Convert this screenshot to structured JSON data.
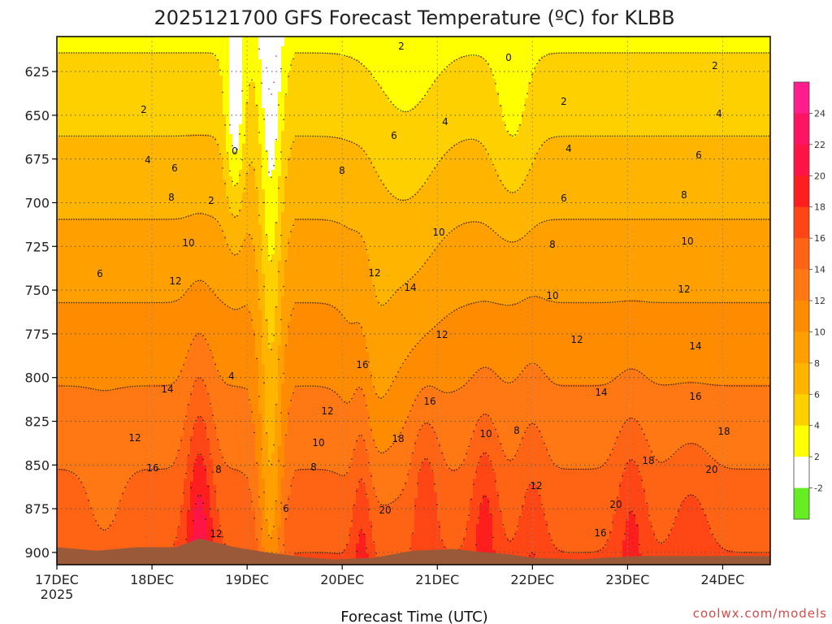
{
  "chart_data": {
    "type": "heatmap",
    "title": "2025121700 GFS Forecast Temperature (ºC) for KLBB",
    "xlabel": "Forecast Time (UTC)",
    "ylabel": "",
    "x_ticks": [
      "17DEC\n2025",
      "18DEC",
      "19DEC",
      "20DEC",
      "21DEC",
      "22DEC",
      "23DEC",
      "24DEC"
    ],
    "y_ticks": [
      625,
      650,
      675,
      700,
      725,
      750,
      775,
      800,
      825,
      850,
      875,
      900
    ],
    "ylim_hpa": [
      605,
      907
    ],
    "xlim_hours": [
      0,
      180
    ],
    "colorbar": {
      "labels": [
        24,
        22,
        20,
        18,
        16,
        14,
        12,
        10,
        8,
        6,
        4,
        2,
        -2
      ],
      "bands": [
        {
          "min": 24,
          "max": 26,
          "color": "#ff1e8c"
        },
        {
          "min": 22,
          "max": 24,
          "color": "#ff1464"
        },
        {
          "min": 20,
          "max": 22,
          "color": "#ff1446"
        },
        {
          "min": 18,
          "max": 20,
          "color": "#ff1e1e"
        },
        {
          "min": 16,
          "max": 18,
          "color": "#ff4614"
        },
        {
          "min": 14,
          "max": 16,
          "color": "#ff6414"
        },
        {
          "min": 12,
          "max": 14,
          "color": "#ff7814"
        },
        {
          "min": 10,
          "max": 12,
          "color": "#ff8c00"
        },
        {
          "min": 8,
          "max": 10,
          "color": "#ffa000"
        },
        {
          "min": 6,
          "max": 8,
          "color": "#ffb400"
        },
        {
          "min": 4,
          "max": 6,
          "color": "#ffd000"
        },
        {
          "min": 2,
          "max": 4,
          "color": "#ffff00"
        },
        {
          "min": -2,
          "max": 2,
          "color": "#ffffff"
        },
        {
          "min": -4,
          "max": -2,
          "color": "#66ee22"
        }
      ]
    },
    "contour_labels": [
      "0",
      "2",
      "4",
      "6",
      "8",
      "10",
      "12",
      "14",
      "16",
      "18",
      "20"
    ],
    "ground_color": "#9a5a3a",
    "freezing_line_color": "#a0146e",
    "grid": true
  },
  "credit": "coolwx.com/models"
}
